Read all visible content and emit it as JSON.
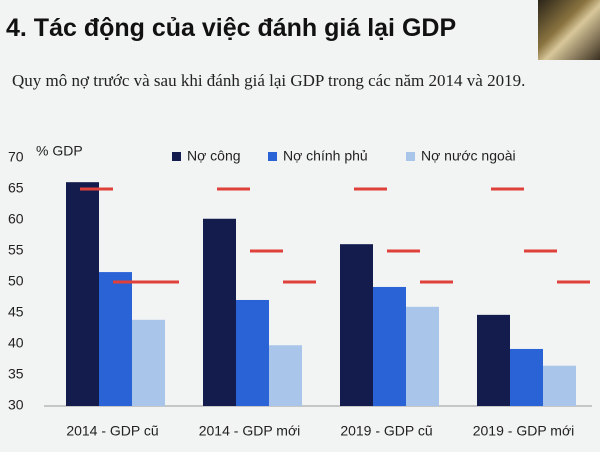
{
  "chart_data": {
    "type": "bar",
    "title": "4. Tác động của việc đánh giá lại GDP",
    "subtitle": "Quy mô nợ trước và sau khi đánh giá lại GDP trong các năm 2014 và 2019.",
    "ylabel": "% GDP",
    "categories": [
      "2014 - GDP cũ",
      "2014 - GDP mới",
      "2019 - GDP cũ",
      "2019 - GDP mới"
    ],
    "series": [
      {
        "name": "Nợ công",
        "color": "#141c4e",
        "values": [
          66.1,
          60.2,
          56.1,
          44.7
        ]
      },
      {
        "name": "Nợ chính phủ",
        "color": "#2a63d6",
        "values": [
          51.6,
          47.1,
          49.2,
          39.2
        ]
      },
      {
        "name": "Nợ nước ngoài",
        "color": "#a9c6ea",
        "values": [
          43.9,
          39.8,
          46,
          36.5
        ]
      }
    ],
    "limits": [
      [
        65,
        50,
        50
      ],
      [
        65,
        55,
        50
      ],
      [
        65,
        55,
        50
      ],
      [
        65,
        55,
        50
      ]
    ],
    "limit_color": "#e0403a",
    "ylim": [
      30,
      70
    ],
    "yticks": [
      30,
      35,
      40,
      45,
      50,
      55,
      60,
      65,
      70
    ],
    "grid": false
  }
}
